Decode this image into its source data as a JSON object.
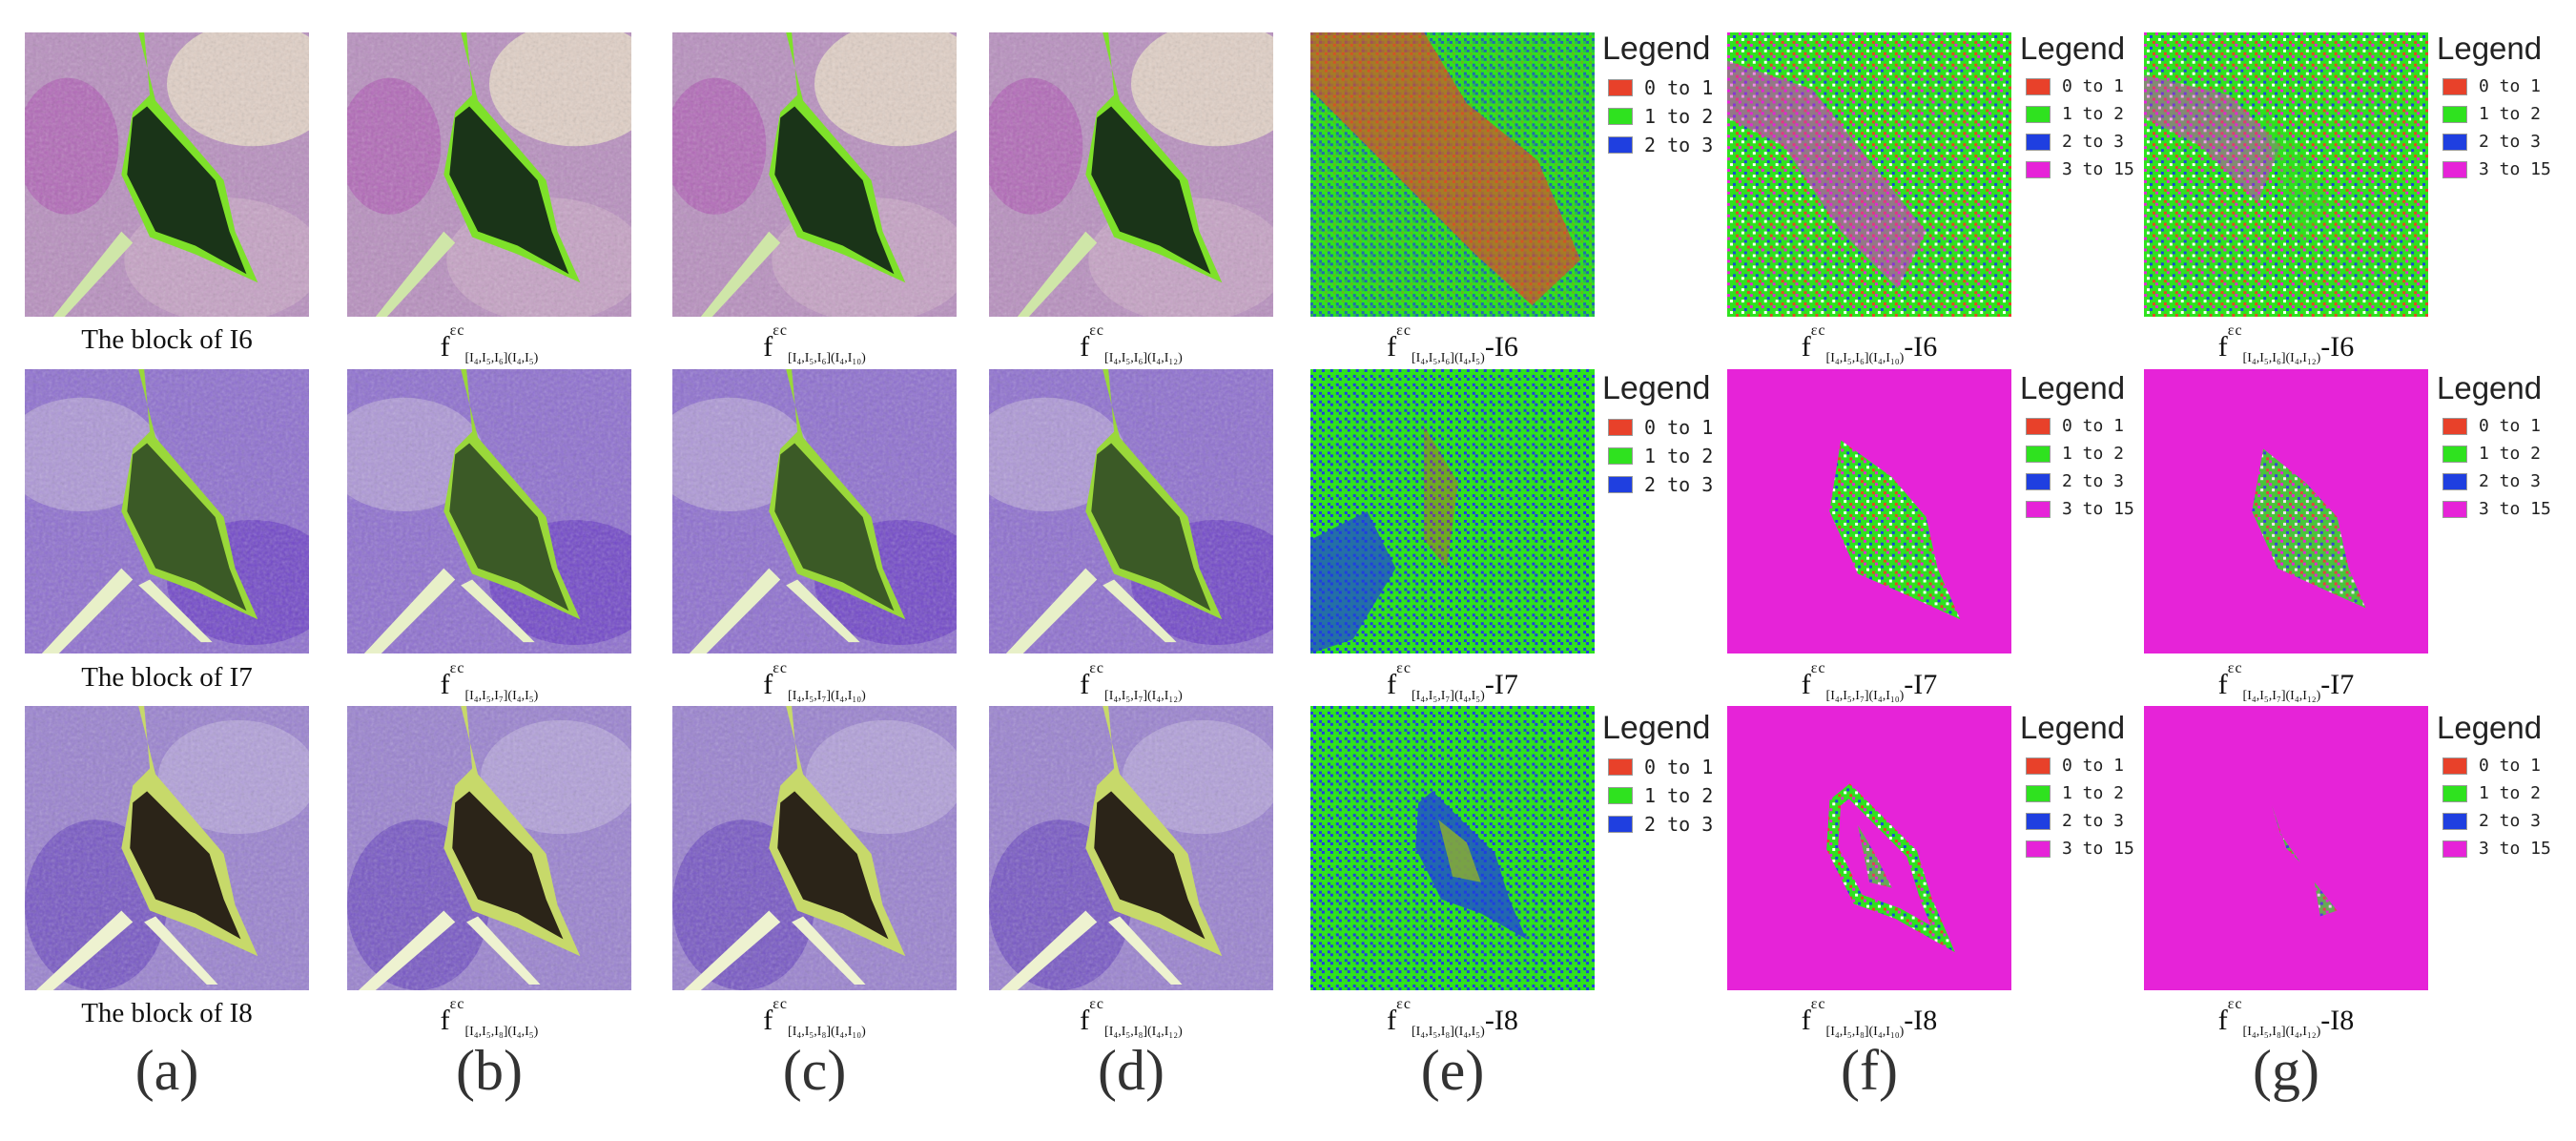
{
  "colors": {
    "red": "#e8412a",
    "green": "#2fe21f",
    "blue": "#1f3fe0",
    "magenta": "#e623d8",
    "lake": "#1d3a1a",
    "shore": "#8be02c"
  },
  "rows": [
    {
      "row_id": "I6",
      "image_caption": "The block of I6",
      "b": {
        "base": "f",
        "sup": "εc",
        "sub": "[I₄,I₅,I₆](I₄,I₅)",
        "suffix": ""
      },
      "c": {
        "base": "f",
        "sup": "εc",
        "sub": "[I₄,I₅,I₆](I₄,I₁₀)",
        "suffix": ""
      },
      "d": {
        "base": "f",
        "sup": "εc",
        "sub": "[I₄,I₅,I₆](I₄,I₁₂)",
        "suffix": ""
      },
      "e": {
        "base": "f",
        "sup": "εc",
        "sub": "[I₄,I₅,I₆](I₄,I₅)",
        "suffix": "-I6"
      },
      "f": {
        "base": "f",
        "sup": "εc",
        "sub": "[I₄,I₅,I₆](I₄,I₁₀)",
        "suffix": "-I6"
      },
      "g": {
        "base": "f",
        "sup": "εc",
        "sub": "[I₄,I₅,I₆](I₄,I₁₂)",
        "suffix": "-I6"
      }
    },
    {
      "row_id": "I7",
      "image_caption": "The block of I7",
      "b": {
        "base": "f",
        "sup": "εc",
        "sub": "[I₄,I₅,I₇](I₄,I₅)",
        "suffix": ""
      },
      "c": {
        "base": "f",
        "sup": "εc",
        "sub": "[I₄,I₅,I₇](I₄,I₁₀)",
        "suffix": ""
      },
      "d": {
        "base": "f",
        "sup": "εc",
        "sub": "[I₄,I₅,I₇](I₄,I₁₂)",
        "suffix": ""
      },
      "e": {
        "base": "f",
        "sup": "εc",
        "sub": "[I₄,I₅,I₇](I₄,I₅)",
        "suffix": "-I7"
      },
      "f": {
        "base": "f",
        "sup": "εc",
        "sub": "[I₄,I₅,I₇](I₄,I₁₀)",
        "suffix": "-I7"
      },
      "g": {
        "base": "f",
        "sup": "εc",
        "sub": "[I₄,I₅,I₇](I₄,I₁₂)",
        "suffix": "-I7"
      }
    },
    {
      "row_id": "I8",
      "image_caption": "The block of I8",
      "b": {
        "base": "f",
        "sup": "εc",
        "sub": "[I₄,I₅,I₈](I₄,I₅)",
        "suffix": ""
      },
      "c": {
        "base": "f",
        "sup": "εc",
        "sub": "[I₄,I₅,I₈](I₄,I₁₀)",
        "suffix": ""
      },
      "d": {
        "base": "f",
        "sup": "εc",
        "sub": "[I₄,I₅,I₈](I₄,I₁₂)",
        "suffix": ""
      },
      "e": {
        "base": "f",
        "sup": "εc",
        "sub": "[I₄,I₅,I₈](I₄,I₅)",
        "suffix": "-I8"
      },
      "f": {
        "base": "f",
        "sup": "εc",
        "sub": "[I₄,I₅,I₈](I₄,I₁₀)",
        "suffix": "-I8"
      },
      "g": {
        "base": "f",
        "sup": "εc",
        "sub": "[I₄,I₅,I₈](I₄,I₁₂)",
        "suffix": "-I8"
      }
    }
  ],
  "legend_title": "Legend",
  "legend_e": [
    "0 to 1",
    "1 to 2",
    "2 to 3"
  ],
  "legend_fg": [
    "0 to 1",
    "1 to 2",
    "2 to 3",
    "3 to 15"
  ],
  "column_labels": [
    "(a)",
    "(b)",
    "(c)",
    "(d)",
    "(e)",
    "(f)",
    "(g)"
  ]
}
